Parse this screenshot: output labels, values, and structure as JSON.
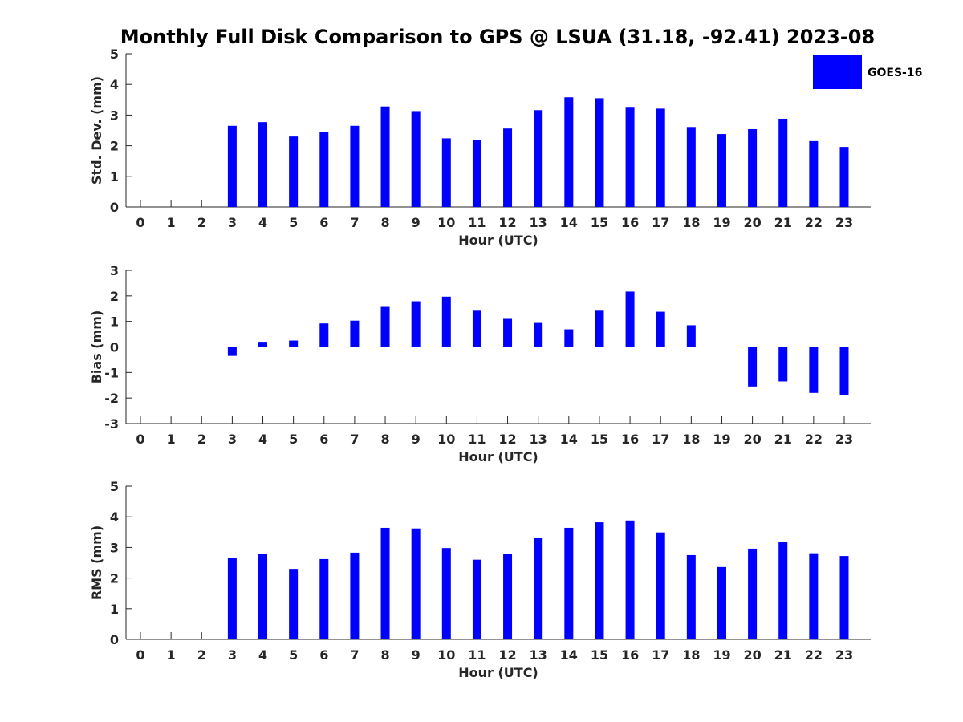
{
  "title": "Monthly Full Disk Comparison to GPS @ LSUA (31.18, -92.41) 2023-08",
  "legend": {
    "label": "GOES-16",
    "color": "#0000ff",
    "placement": "top-right"
  },
  "chart_data": [
    {
      "type": "bar",
      "name": "stddev",
      "ylabel": "Std. Dev. (mm)",
      "xlabel": "Hour (UTC)",
      "ylim": [
        0,
        5
      ],
      "yticks": [
        0,
        1,
        2,
        3,
        4,
        5
      ],
      "categories": [
        "0",
        "1",
        "2",
        "3",
        "4",
        "5",
        "6",
        "7",
        "8",
        "9",
        "10",
        "11",
        "12",
        "13",
        "14",
        "15",
        "16",
        "17",
        "18",
        "19",
        "20",
        "21",
        "22",
        "23"
      ],
      "series": [
        {
          "color": "#0000ff",
          "values": [
            null,
            null,
            null,
            2.65,
            2.77,
            2.3,
            2.45,
            2.65,
            3.28,
            3.13,
            2.24,
            2.19,
            2.56,
            3.16,
            3.58,
            3.55,
            3.24,
            3.21,
            2.61,
            2.38,
            2.54,
            2.88,
            2.15,
            1.96
          ]
        }
      ]
    },
    {
      "type": "bar",
      "name": "bias",
      "ylabel": "Bias (mm)",
      "xlabel": "Hour (UTC)",
      "ylim": [
        -3,
        3
      ],
      "yticks": [
        -3,
        -2,
        -1,
        0,
        1,
        2,
        3
      ],
      "categories": [
        "0",
        "1",
        "2",
        "3",
        "4",
        "5",
        "6",
        "7",
        "8",
        "9",
        "10",
        "11",
        "12",
        "13",
        "14",
        "15",
        "16",
        "17",
        "18",
        "19",
        "20",
        "21",
        "22",
        "23"
      ],
      "series": [
        {
          "color": "#0000ff",
          "values": [
            null,
            null,
            null,
            -0.35,
            0.2,
            0.25,
            0.92,
            1.03,
            1.57,
            1.79,
            1.97,
            1.42,
            1.1,
            0.94,
            0.69,
            1.42,
            2.17,
            1.38,
            0.85,
            0.0,
            -1.55,
            -1.35,
            -1.8,
            -1.88
          ]
        }
      ]
    },
    {
      "type": "bar",
      "name": "rms",
      "ylabel": "RMS (mm)",
      "xlabel": "Hour (UTC)",
      "ylim": [
        0,
        5
      ],
      "yticks": [
        0,
        1,
        2,
        3,
        4,
        5
      ],
      "categories": [
        "0",
        "1",
        "2",
        "3",
        "4",
        "5",
        "6",
        "7",
        "8",
        "9",
        "10",
        "11",
        "12",
        "13",
        "14",
        "15",
        "16",
        "17",
        "18",
        "19",
        "20",
        "21",
        "22",
        "23"
      ],
      "series": [
        {
          "color": "#0000ff",
          "values": [
            null,
            null,
            null,
            2.65,
            2.78,
            2.3,
            2.62,
            2.83,
            3.64,
            3.62,
            2.98,
            2.6,
            2.78,
            3.3,
            3.64,
            3.82,
            3.88,
            3.49,
            2.75,
            2.36,
            2.96,
            3.19,
            2.81,
            2.72
          ]
        }
      ]
    }
  ]
}
